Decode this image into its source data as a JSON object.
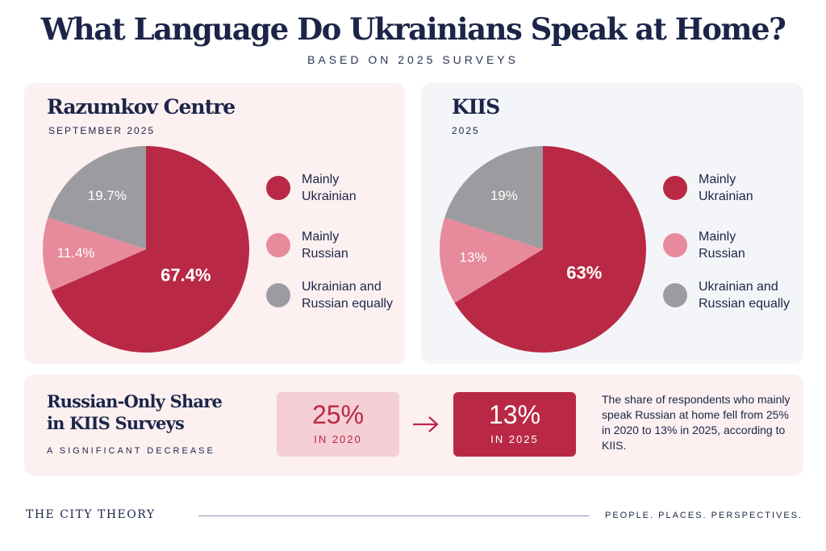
{
  "header": {
    "title": "What Language Do Ukrainians Speak at Home?",
    "subtitle": "BASED ON 2025 SURVEYS"
  },
  "colors": {
    "mainly_ukrainian": "#b92945",
    "mainly_russian": "#e78a9b",
    "equally": "#9c9ca0"
  },
  "chart_data": [
    {
      "type": "pie",
      "title": "Razumkov Centre",
      "subtitle": "SEPTEMBER 2025",
      "slices": [
        {
          "name": "Mainly Ukrainian",
          "value": 67.4,
          "label": "67.4%",
          "color": "#b92945"
        },
        {
          "name": "Mainly Russian",
          "value": 11.4,
          "label": "11.4%",
          "color": "#e78a9b"
        },
        {
          "name": "Ukrainian and Russian equally",
          "value": 19.7,
          "label": "19.7%",
          "color": "#9c9ca0"
        }
      ],
      "legend_position": "right"
    },
    {
      "type": "pie",
      "title": "KIIS",
      "subtitle": "2025",
      "slices": [
        {
          "name": "Mainly Ukrainian",
          "value": 63,
          "label": "63%",
          "color": "#b92945"
        },
        {
          "name": "Mainly Russian",
          "value": 13,
          "label": "13%",
          "color": "#e78a9b"
        },
        {
          "name": "Ukrainian and Russian equally",
          "value": 19,
          "label": "19%",
          "color": "#9c9ca0"
        }
      ],
      "legend_position": "right"
    }
  ],
  "legend": [
    {
      "line1": "Mainly",
      "line2": "Ukrainian",
      "color": "#b92945"
    },
    {
      "line1": "Mainly",
      "line2": "Russian",
      "color": "#e78a9b"
    },
    {
      "line1": "Ukrainian and",
      "line2": "Russian equally",
      "color": "#9c9ca0"
    }
  ],
  "comparison": {
    "title_line1": "Russian-Only Share",
    "title_line2": "in KIIS Surveys",
    "subtitle": "A SIGNIFICANT DECREASE",
    "before": {
      "value": "25%",
      "label": "IN 2020"
    },
    "after": {
      "value": "13%",
      "label": "IN 2025"
    },
    "note": "The share of respondents who mainly speak Russian at home fell from 25% in 2020 to 13% in 2025, according to KIIS."
  },
  "footer": {
    "brand": "THE CITY THEORY",
    "tagline": "PEOPLE. PLACES. PERSPECTIVES."
  }
}
